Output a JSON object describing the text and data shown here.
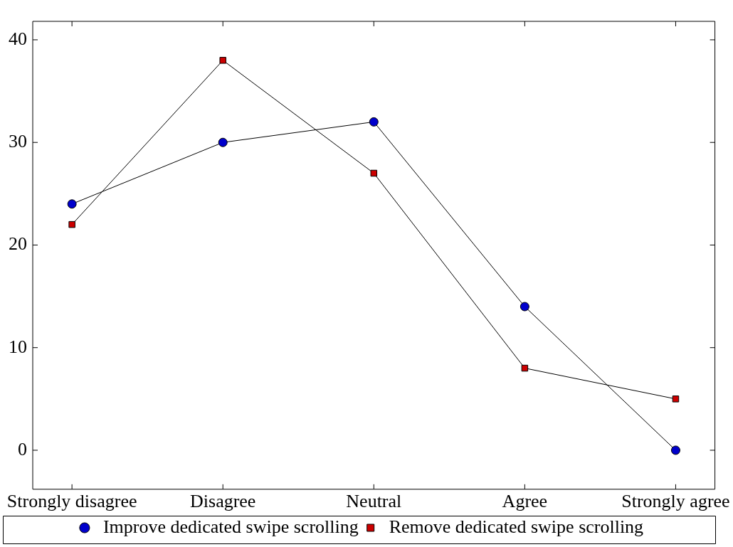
{
  "chart_data": {
    "type": "line",
    "categories": [
      "Strongly disagree",
      "Disagree",
      "Neutral",
      "Agree",
      "Strongly agree"
    ],
    "series": [
      {
        "name": "Improve dedicated swipe scrolling",
        "color": "#0000cc",
        "marker": "circle",
        "values": [
          24,
          30,
          32,
          14,
          0
        ]
      },
      {
        "name": "Remove dedicated swipe scrolling",
        "color": "#cc0000",
        "marker": "square",
        "values": [
          22,
          38,
          27,
          8,
          5
        ]
      }
    ],
    "ylim": [
      -3.8,
      41.8
    ],
    "yticks": [
      0,
      10,
      20,
      30,
      40
    ],
    "grid": false,
    "legend": "bottom",
    "line_style": "solid"
  }
}
